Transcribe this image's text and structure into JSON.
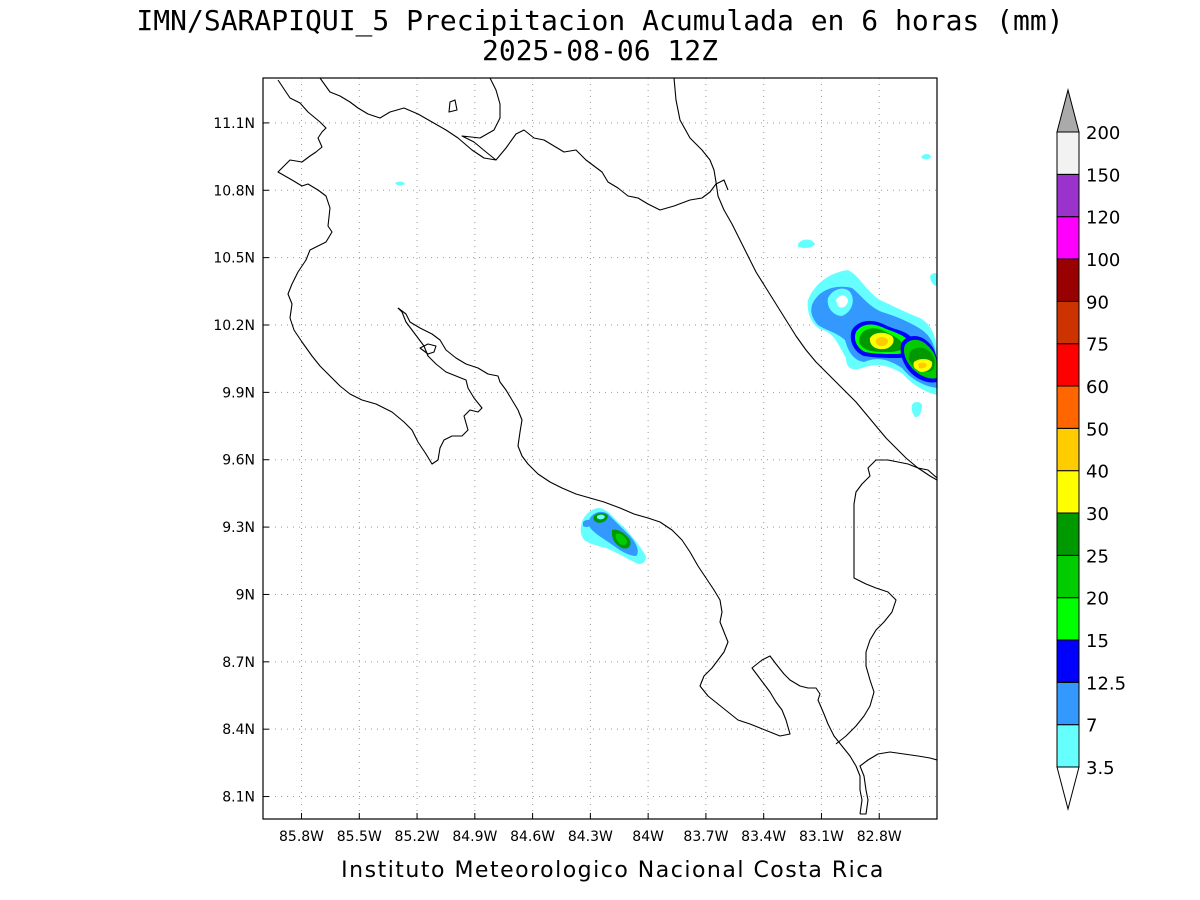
{
  "title": {
    "line1": "IMN/SARAPIQUI_5 Precipitacion Acumulada en 6 horas (mm)",
    "line2": "2025-08-06 12Z"
  },
  "footer": "Instituto Meteorologico Nacional Costa Rica",
  "axes": {
    "x_ticks": [
      "85.8W",
      "85.5W",
      "85.2W",
      "84.9W",
      "84.6W",
      "84.3W",
      "84W",
      "83.7W",
      "83.4W",
      "83.1W",
      "82.8W"
    ],
    "x_values": [
      -85.8,
      -85.5,
      -85.2,
      -84.9,
      -84.6,
      -84.3,
      -84.0,
      -83.7,
      -83.4,
      -83.1,
      -82.8
    ],
    "y_ticks": [
      "11.1N",
      "10.8N",
      "10.5N",
      "10.2N",
      "9.9N",
      "9.6N",
      "9.3N",
      "9N",
      "8.7N",
      "8.4N",
      "8.1N"
    ],
    "y_values": [
      11.1,
      10.8,
      10.5,
      10.2,
      9.9,
      9.6,
      9.3,
      9.0,
      8.7,
      8.4,
      8.1
    ],
    "lon_range": [
      -86.0,
      -82.5
    ],
    "lat_range": [
      8.0,
      11.3
    ],
    "grid": true
  },
  "colorbar": {
    "labels": [
      "3.5",
      "7",
      "12.5",
      "15",
      "20",
      "25",
      "30",
      "40",
      "50",
      "60",
      "75",
      "90",
      "100",
      "120",
      "150",
      "200"
    ],
    "colors": [
      "#66ffff",
      "#3399ff",
      "#0000ff",
      "#00ff00",
      "#00cc00",
      "#009900",
      "#ffff00",
      "#ffcc00",
      "#ff6600",
      "#ff0000",
      "#cc3300",
      "#990000",
      "#ff00ff",
      "#9933cc",
      "#f2f2f2"
    ],
    "over_color": "#aaaaaa",
    "under_color": "#ffffff"
  },
  "precip_cells": [
    {
      "lon": -82.87,
      "lat": 10.14,
      "peak_mm": 30
    },
    {
      "lon": -82.62,
      "lat": 10.03,
      "peak_mm": 30
    },
    {
      "lon": -83.02,
      "lat": 10.26,
      "peak_mm": 7
    },
    {
      "lon": -84.12,
      "lat": 9.25,
      "peak_mm": 25
    },
    {
      "lon": -84.24,
      "lat": 9.35,
      "peak_mm": 25
    }
  ]
}
